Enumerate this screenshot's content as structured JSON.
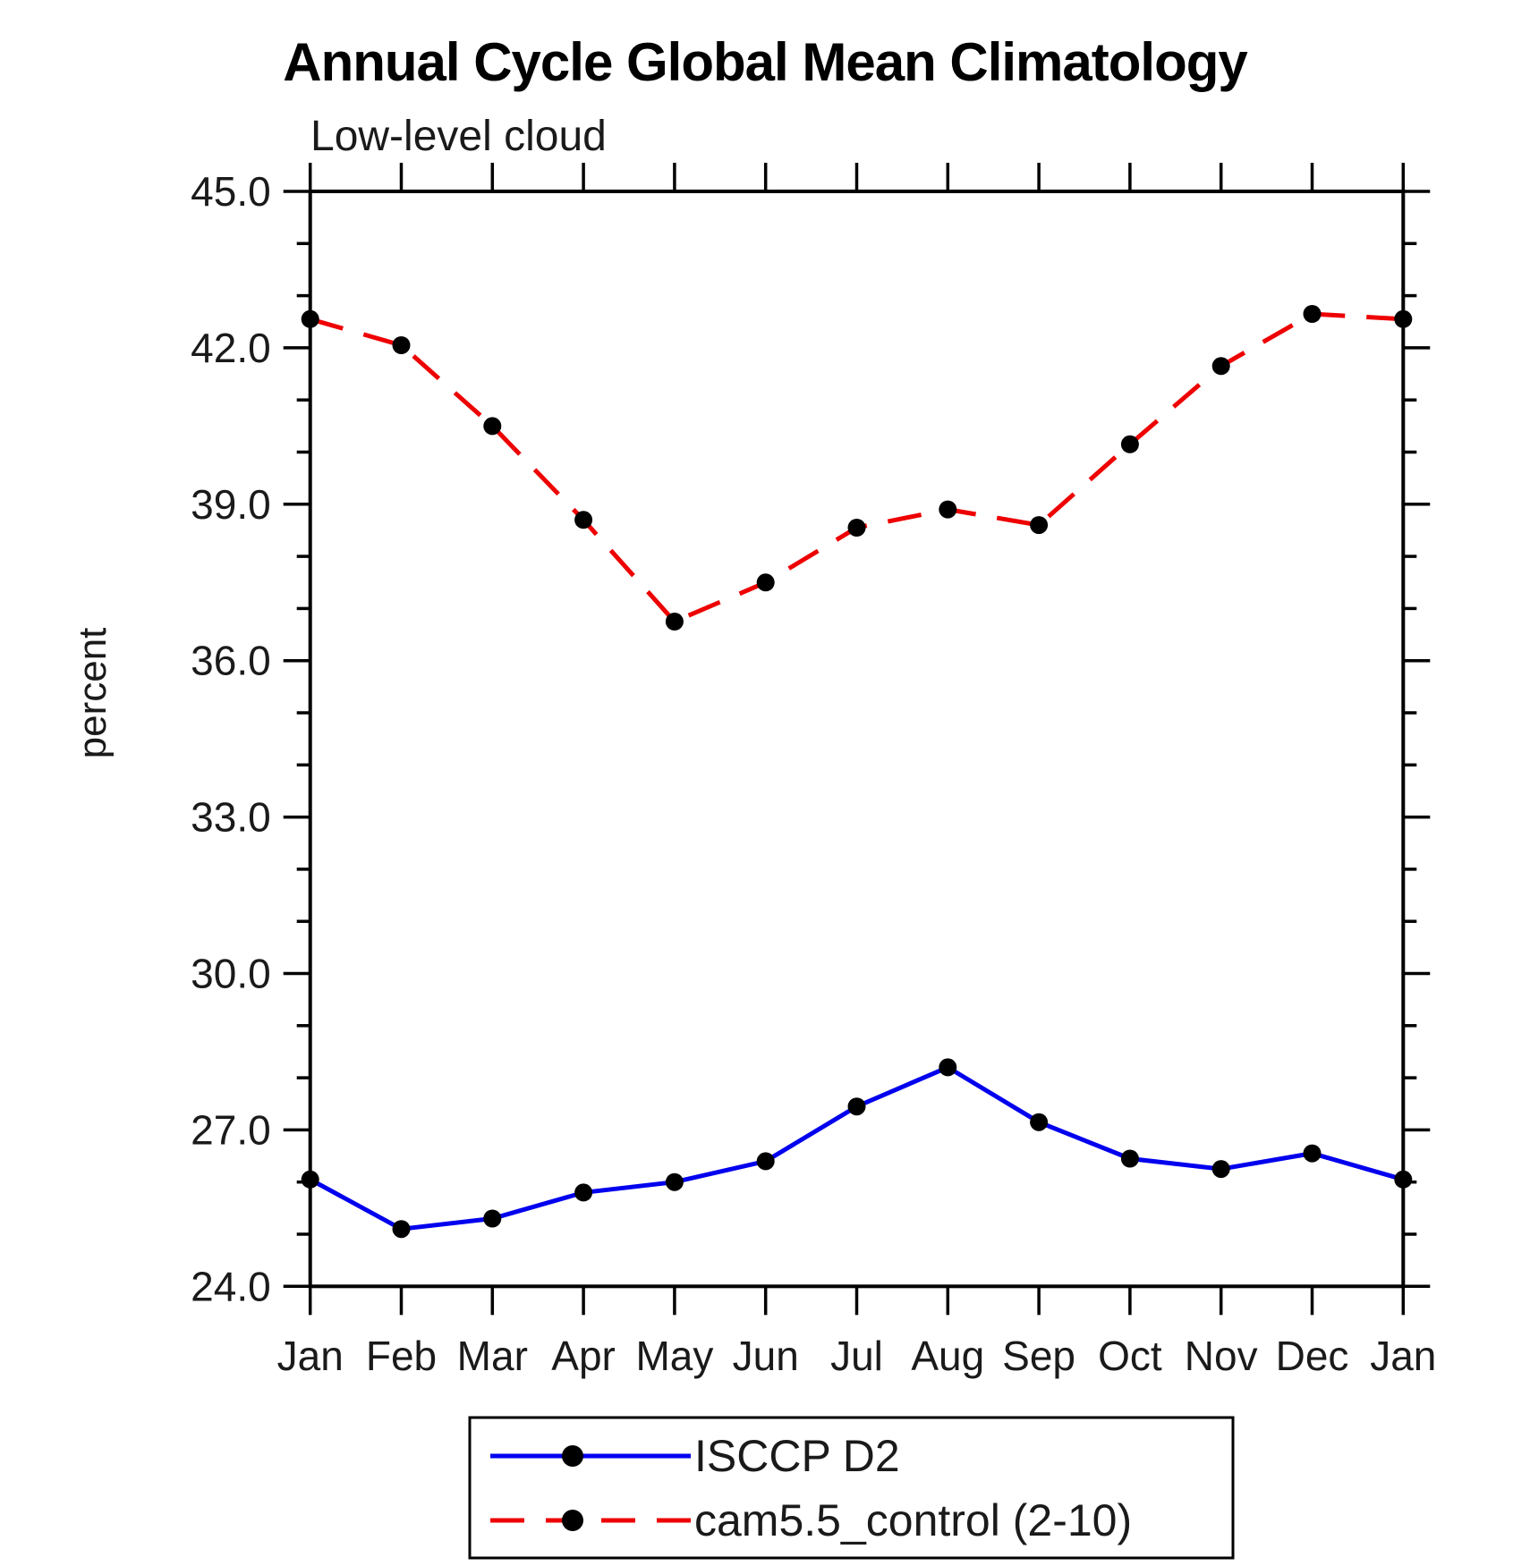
{
  "page": {
    "background": "#ffffff"
  },
  "chart_data": {
    "type": "line",
    "title": "Annual Cycle Global Mean Climatology",
    "subtitle": "Low-level cloud",
    "ylabel": "percent",
    "xlabel": "",
    "categories": [
      "Jan",
      "Feb",
      "Mar",
      "Apr",
      "May",
      "Jun",
      "Jul",
      "Aug",
      "Sep",
      "Oct",
      "Nov",
      "Dec",
      "Jan"
    ],
    "ylim": [
      24.0,
      45.0
    ],
    "y_major_tick_step": 3.0,
    "y_minor_tick_step": 1.0,
    "y_tick_labels": [
      "24.0",
      "27.0",
      "30.0",
      "33.0",
      "36.0",
      "39.0",
      "42.0",
      "45.0"
    ],
    "grid": false,
    "legend_position": "bottom-center",
    "marker": "filled-circle",
    "marker_color": "#000000",
    "series": [
      {
        "name": "ISCCP D2",
        "line_style": "solid",
        "line_color": "#0000ee",
        "values": [
          26.05,
          25.1,
          25.3,
          25.8,
          26.0,
          26.4,
          27.45,
          28.2,
          27.15,
          26.45,
          26.25,
          26.55,
          26.05
        ]
      },
      {
        "name": "cam5.5_control (2-10)",
        "line_style": "dashed",
        "line_color": "#ee0000",
        "values": [
          42.55,
          42.05,
          40.5,
          38.7,
          36.75,
          37.5,
          38.55,
          38.9,
          38.6,
          40.15,
          41.65,
          42.65,
          42.55
        ]
      }
    ]
  }
}
